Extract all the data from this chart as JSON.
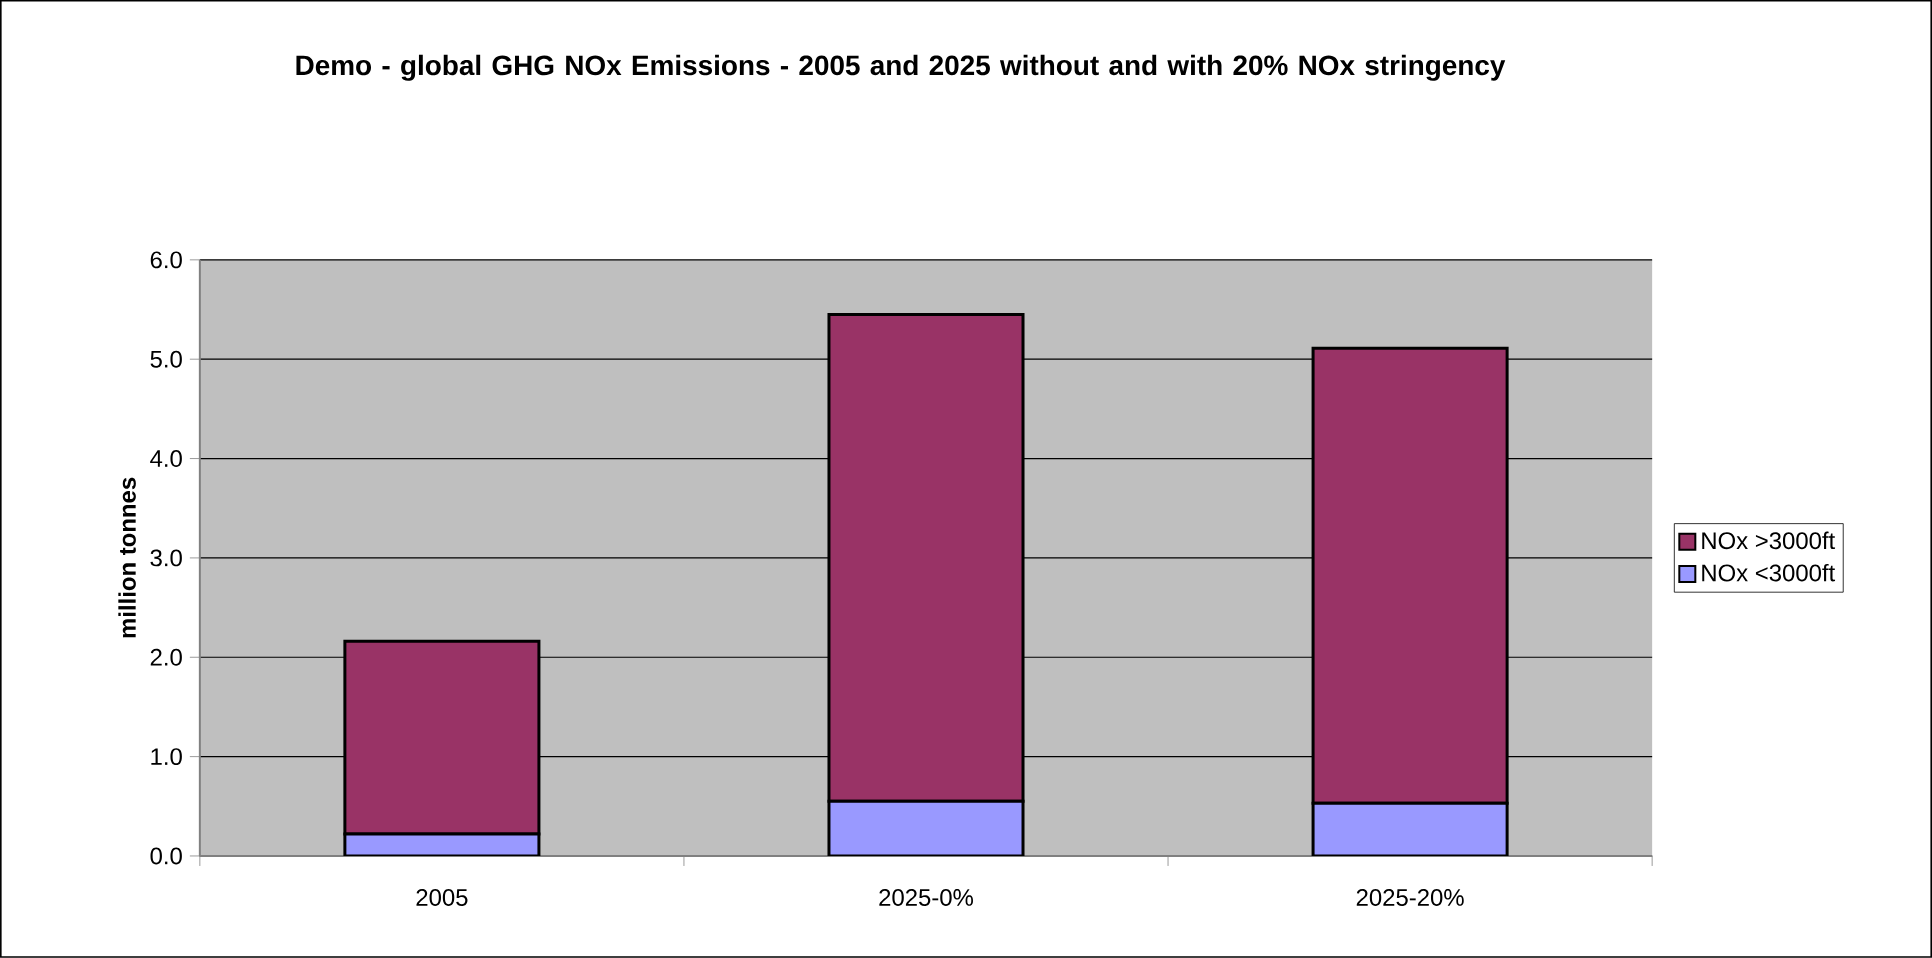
{
  "chart_data": {
    "type": "bar",
    "stacked": true,
    "title": "Demo - global GHG NOx Emissions - 2005 and 2025 without and with 20% NOx stringency",
    "ylabel": "million tonnes",
    "categories": [
      "2005",
      "2025-0%",
      "2025-20%"
    ],
    "series": [
      {
        "name": "NOx <3000ft",
        "color": "#9999ff",
        "values": [
          0.22,
          0.55,
          0.53
        ]
      },
      {
        "name": "NOx >3000ft",
        "color": "#993366",
        "values": [
          1.94,
          4.9,
          4.58
        ]
      }
    ],
    "ylim": [
      0,
      6
    ],
    "yticks": [
      {
        "value": 0,
        "label": "0.0"
      },
      {
        "value": 1,
        "label": "1.0"
      },
      {
        "value": 2,
        "label": "2.0"
      },
      {
        "value": 3,
        "label": "3.0"
      },
      {
        "value": 4,
        "label": "4.0"
      },
      {
        "value": 5,
        "label": "5.0"
      },
      {
        "value": 6,
        "label": "6.0"
      }
    ],
    "grid": "y",
    "legend": "right"
  }
}
